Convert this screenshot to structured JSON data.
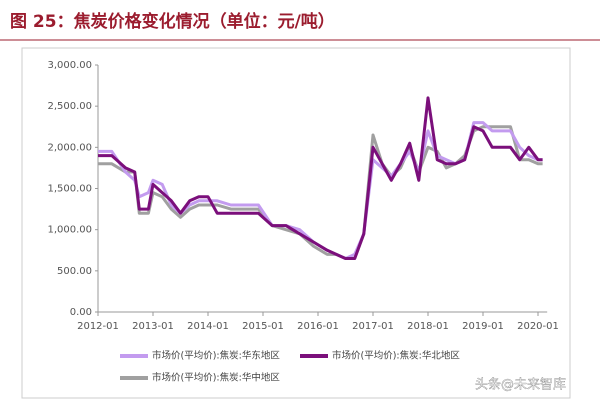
{
  "chart_data": {
    "type": "line",
    "title": "图 25：焦炭价格变化情况（单位：元/吨）",
    "x": [
      "2012-01",
      "2012-04",
      "2012-07",
      "2012-09",
      "2012-10",
      "2012-12",
      "2013-01",
      "2013-03",
      "2013-05",
      "2013-07",
      "2013-09",
      "2013-11",
      "2014-01",
      "2014-03",
      "2014-06",
      "2014-09",
      "2014-12",
      "2015-03",
      "2015-06",
      "2015-09",
      "2015-12",
      "2016-03",
      "2016-05",
      "2016-07",
      "2016-09",
      "2016-11",
      "2017-01",
      "2017-03",
      "2017-05",
      "2017-07",
      "2017-09",
      "2017-11",
      "2018-01",
      "2018-03",
      "2018-05",
      "2018-07",
      "2018-09",
      "2018-11",
      "2019-01",
      "2019-03",
      "2019-05",
      "2019-07",
      "2019-09",
      "2019-11",
      "2020-01",
      "2020-02"
    ],
    "series": [
      {
        "name": "市场价(平均价):焦炭:华东地区",
        "color": "#c39bef",
        "values": [
          1950,
          1950,
          1700,
          1600,
          1400,
          1450,
          1600,
          1550,
          1300,
          1200,
          1300,
          1350,
          1350,
          1350,
          1300,
          1300,
          1300,
          1050,
          1050,
          1000,
          850,
          750,
          700,
          650,
          700,
          950,
          1850,
          1750,
          1650,
          1800,
          1950,
          1700,
          2200,
          1900,
          1850,
          1800,
          1850,
          2300,
          2300,
          2200,
          2200,
          2200,
          2000,
          1900,
          1850,
          1850
        ]
      },
      {
        "name": "市场价(平均价):焦炭:华北地区",
        "color": "#7b0f7b",
        "values": [
          1900,
          1900,
          1750,
          1700,
          1250,
          1250,
          1550,
          1450,
          1350,
          1200,
          1350,
          1400,
          1400,
          1200,
          1200,
          1200,
          1200,
          1050,
          1050,
          950,
          850,
          750,
          700,
          650,
          650,
          950,
          2000,
          1800,
          1600,
          1800,
          2050,
          1600,
          2600,
          1850,
          1800,
          1800,
          1850,
          2250,
          2200,
          2000,
          2000,
          2000,
          1850,
          2000,
          1850,
          1850
        ]
      },
      {
        "name": "市场价(平均价):焦炭:华中地区",
        "color": "#a0a0a0",
        "values": [
          1800,
          1800,
          1700,
          1700,
          1200,
          1200,
          1450,
          1400,
          1250,
          1150,
          1250,
          1300,
          1300,
          1300,
          1250,
          1250,
          1250,
          1050,
          1000,
          950,
          800,
          700,
          700,
          650,
          650,
          950,
          2150,
          1800,
          1650,
          1750,
          2000,
          1700,
          2000,
          1950,
          1750,
          1800,
          1900,
          2200,
          2250,
          2250,
          2250,
          2250,
          1850,
          1850,
          1800,
          1800
        ]
      }
    ],
    "xlim": [
      "2012-01",
      "2020-03"
    ],
    "xticks": [
      "2012-01",
      "2013-01",
      "2014-01",
      "2015-01",
      "2016-01",
      "2017-01",
      "2018-01",
      "2019-01",
      "2020-01"
    ],
    "ylim": [
      0,
      3000
    ],
    "yticks": [
      {
        "value": 0,
        "label": "0.00"
      },
      {
        "value": 500,
        "label": "500.00"
      },
      {
        "value": 1000,
        "label": "1,000.00"
      },
      {
        "value": 1500,
        "label": "1,500.00"
      },
      {
        "value": 2000,
        "label": "2,000.00"
      },
      {
        "value": 2500,
        "label": "2,500.00"
      },
      {
        "value": 3000,
        "label": "3,000.00"
      }
    ],
    "grid": false,
    "watermark": "头条@未来智库"
  }
}
